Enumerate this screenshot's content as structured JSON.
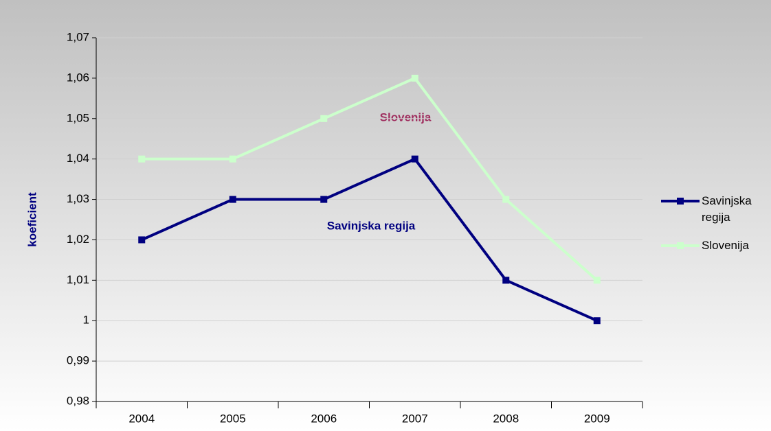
{
  "chart_data": {
    "type": "line",
    "categories": [
      "2004",
      "2005",
      "2006",
      "2007",
      "2008",
      "2009"
    ],
    "series": [
      {
        "name": "Savinjska regija",
        "color": "#000080",
        "values": [
          1.02,
          1.03,
          1.03,
          1.04,
          1.01,
          1.0
        ]
      },
      {
        "name": "Slovenija",
        "color": "#ccffcc",
        "values": [
          1.04,
          1.04,
          1.05,
          1.06,
          1.03,
          1.01
        ]
      }
    ],
    "ylabel": "koeficient",
    "annotations": [
      "Slovenija",
      "Savinjska regija"
    ],
    "ylim": [
      0.98,
      1.07
    ],
    "yticks": [
      {
        "value": 0.98,
        "label": "0,98"
      },
      {
        "value": 0.99,
        "label": "0,99"
      },
      1,
      {
        "value": 1.01,
        "label": "1,01"
      },
      {
        "value": 1.02,
        "label": "1,02"
      },
      {
        "value": 1.03,
        "label": "1,03"
      },
      {
        "value": 1.04,
        "label": "1,04"
      },
      {
        "value": 1.05,
        "label": "1,05"
      },
      {
        "value": 1.06,
        "label": "1,06"
      },
      {
        "value": 1.07,
        "label": "1,07"
      }
    ],
    "grid": true,
    "legend": "right"
  }
}
